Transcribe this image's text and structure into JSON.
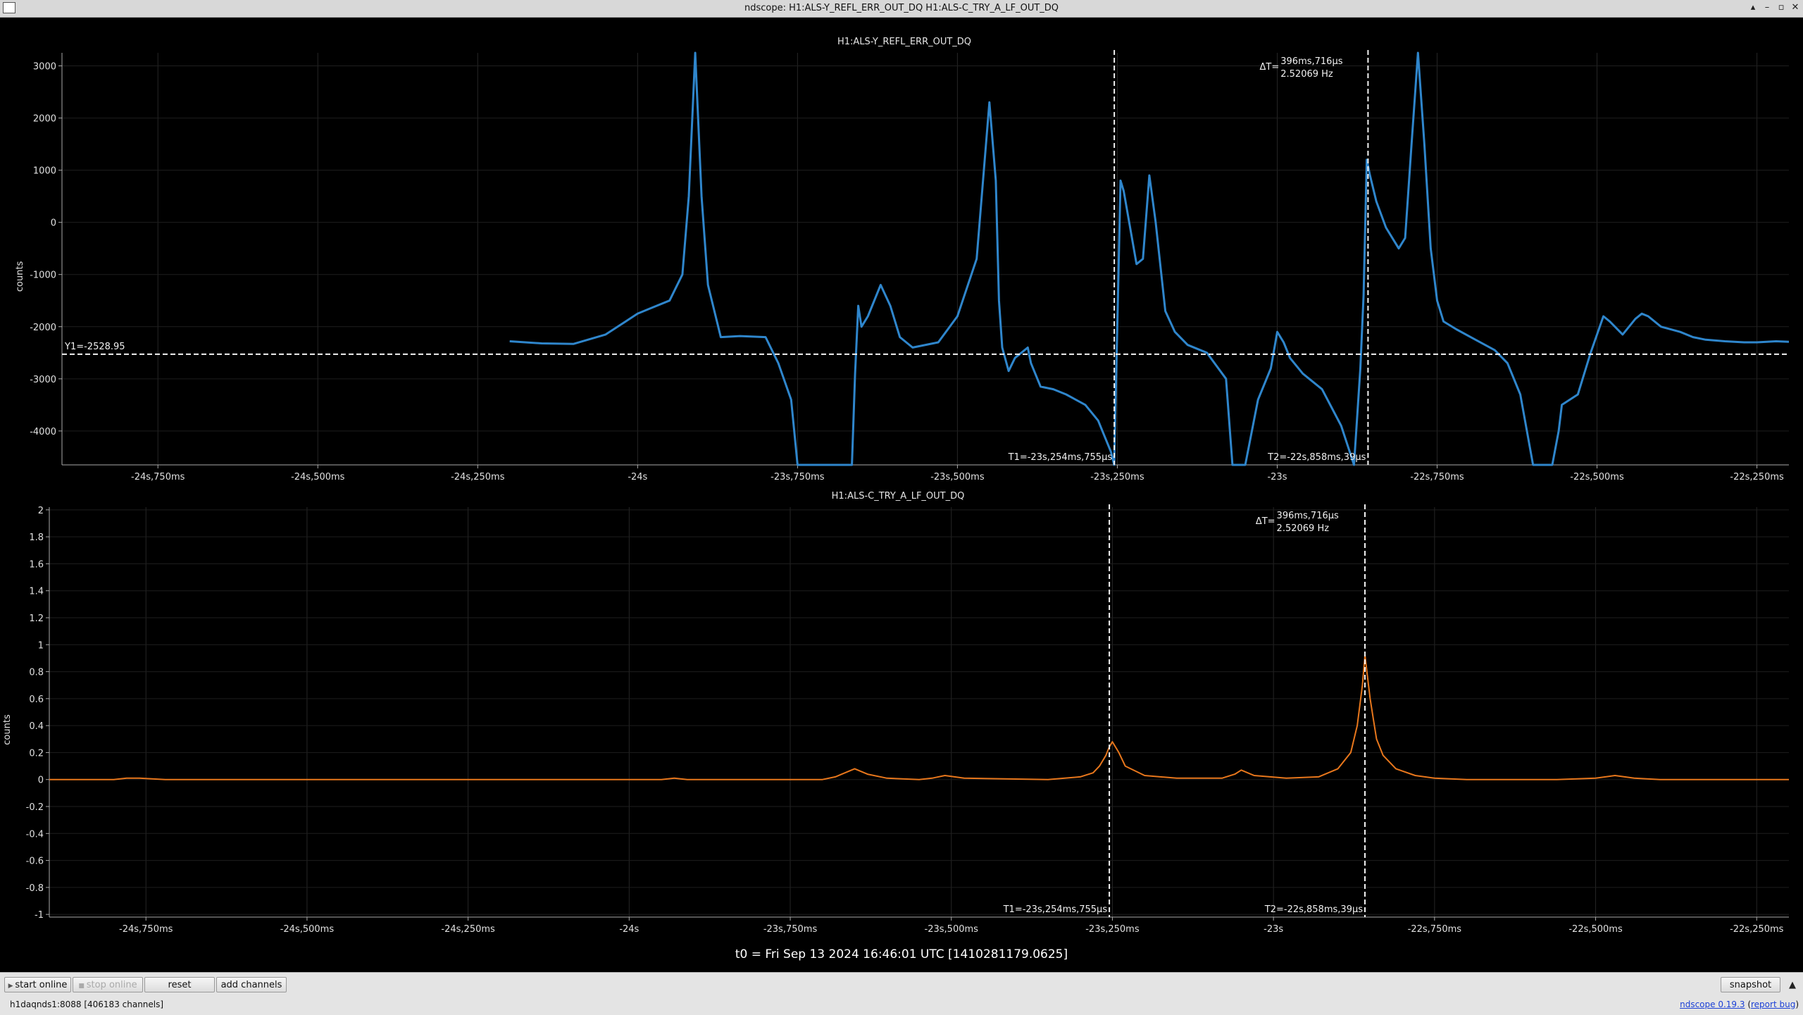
{
  "window": {
    "title": "ndscope: H1:ALS-Y_REFL_ERR_OUT_DQ H1:ALS-C_TRY_A_LF_OUT_DQ"
  },
  "t0_label": "t0 = Fri Sep 13 2024 16:46:01 UTC [1410281179.0625]",
  "toolbar": {
    "start_online": "start online",
    "stop_online": "stop online",
    "reset": "reset",
    "add_channels": "add channels",
    "snapshot": "snapshot"
  },
  "status": {
    "server": "h1daqnds1:8088  [406183 channels]",
    "version_link": "ndscope 0.19.3",
    "report_bug": "report bug"
  },
  "chart_data": [
    {
      "type": "line",
      "title": "H1:ALS-Y_REFL_ERR_OUT_DQ",
      "ylabel": "counts",
      "xlim": [
        -24.9,
        -22.2
      ],
      "ylim": [
        -4650,
        3250
      ],
      "yticks": [
        3000,
        2000,
        1000,
        0,
        -1000,
        -2000,
        -3000,
        -4000
      ],
      "ytick_labels": [
        "3000",
        "2000",
        "1000",
        "0",
        "-1000",
        "-2000",
        "-3000",
        "-4000"
      ],
      "xticks": [
        -24.75,
        -24.5,
        -24.25,
        -24,
        -23.75,
        -23.5,
        -23.25,
        -23,
        -22.75,
        -22.5,
        -22.25
      ],
      "xtick_labels": [
        "-24s,750ms",
        "-24s,500ms",
        "-24s,250ms",
        "-24s",
        "-23s,750ms",
        "-23s,500ms",
        "-23s,250ms",
        "-23s",
        "-22s,750ms",
        "-22s,500ms",
        "-22s,250ms"
      ],
      "grid": true,
      "color": "#2f86cc",
      "series": [
        {
          "x": [
            -24.2,
            -24.15,
            -24.1,
            -24.05,
            -24.0,
            -23.98,
            -23.95,
            -23.93,
            -23.92,
            -23.91,
            -23.9,
            -23.89,
            -23.87,
            -23.84,
            -23.8,
            -23.78,
            -23.76,
            -23.75,
            -23.745,
            -23.74,
            -23.71,
            -23.7,
            -23.665,
            -23.66,
            -23.655,
            -23.65,
            -23.64,
            -23.62,
            -23.605,
            -23.59,
            -23.57,
            -23.53,
            -23.5,
            -23.47,
            -23.45,
            -23.44,
            -23.435,
            -23.43,
            -23.42,
            -23.41,
            -23.39,
            -23.385,
            -23.37,
            -23.35,
            -23.33,
            -23.3,
            -23.28,
            -23.27,
            -23.26,
            -23.255,
            -23.25,
            -23.245,
            -23.24,
            -23.22,
            -23.21,
            -23.2,
            -23.19,
            -23.175,
            -23.16,
            -23.14,
            -23.11,
            -23.08,
            -23.07,
            -23.05,
            -23.05,
            -23.03,
            -23.01,
            -23.0,
            -22.99,
            -22.98,
            -22.96,
            -22.93,
            -22.9,
            -22.88,
            -22.87,
            -22.865,
            -22.86,
            -22.855,
            -22.845,
            -22.83,
            -22.81,
            -22.8,
            -22.79,
            -22.78,
            -22.77,
            -22.76,
            -22.75,
            -22.74,
            -22.72,
            -22.69,
            -22.66,
            -22.64,
            -22.62,
            -22.6,
            -22.59,
            -22.58,
            -22.57,
            -22.56,
            -22.555,
            -22.53,
            -22.51,
            -22.49,
            -22.48,
            -22.46,
            -22.45,
            -22.44,
            -22.43,
            -22.42,
            -22.4,
            -22.37,
            -22.35,
            -22.33,
            -22.3,
            -22.27,
            -22.25,
            -22.22,
            -22.2
          ],
          "y": [
            -2280,
            -2320,
            -2330,
            -2150,
            -1750,
            -1650,
            -1500,
            -1000,
            500,
            3250,
            500,
            -1200,
            -2200,
            -2180,
            -2200,
            -2700,
            -3400,
            -4650,
            -4650,
            -4650,
            -4650,
            -4650,
            -4650,
            -2900,
            -1600,
            -2000,
            -1800,
            -1200,
            -1600,
            -2200,
            -2400,
            -2300,
            -1800,
            -700,
            2300,
            800,
            -1500,
            -2400,
            -2850,
            -2600,
            -2400,
            -2700,
            -3150,
            -3200,
            -3300,
            -3500,
            -3800,
            -4100,
            -4400,
            -4650,
            -2000,
            800,
            600,
            -800,
            -700,
            900,
            0,
            -1700,
            -2100,
            -2350,
            -2500,
            -3000,
            -4650,
            -4650,
            -4650,
            -3400,
            -2800,
            -2100,
            -2300,
            -2600,
            -2900,
            -3200,
            -3900,
            -4650,
            -2800,
            -1400,
            1200,
            900,
            400,
            -100,
            -500,
            -300,
            1500,
            3300,
            1500,
            -500,
            -1500,
            -1900,
            -2050,
            -2250,
            -2450,
            -2700,
            -3300,
            -4650,
            -4650,
            -4650,
            -4650,
            -4000,
            -3500,
            -3300,
            -2500,
            -1800,
            -1900,
            -2150,
            -2000,
            -1850,
            -1750,
            -1800,
            -2000,
            -2100,
            -2200,
            -2250,
            -2280,
            -2300,
            -2300,
            -2280,
            -2290
          ]
        }
      ],
      "cursors": {
        "y1_label": "Y1=-2528.95",
        "y1_value": -2528.95,
        "t1_label": "T1=-23s,254ms,755µs",
        "t1_value": -23.254755,
        "t2_label": "T2=-22s,858ms,39µs",
        "t2_value": -22.858039,
        "delta_label": "ΔT=",
        "delta_time": "396ms,716µs",
        "delta_freq": "2.52069 Hz"
      }
    },
    {
      "type": "line",
      "title": "H1:ALS-C_TRY_A_LF_OUT_DQ",
      "ylabel": "counts",
      "xlim": [
        -24.9,
        -22.2
      ],
      "ylim": [
        -1.02,
        2.02
      ],
      "yticks": [
        2,
        1.8,
        1.6,
        1.4,
        1.2,
        1,
        0.8,
        0.6,
        0.4,
        0.2,
        0,
        -0.2,
        -0.4,
        -0.6,
        -0.8,
        -1
      ],
      "ytick_labels": [
        "2",
        "1.8",
        "1.6",
        "1.4",
        "1.2",
        "1",
        "0.8",
        "0.6",
        "0.4",
        "0.2",
        "0",
        "-0.2",
        "-0.4",
        "-0.6",
        "-0.8",
        "-1"
      ],
      "xticks": [
        -24.75,
        -24.5,
        -24.25,
        -24,
        -23.75,
        -23.5,
        -23.25,
        -23,
        -22.75,
        -22.5,
        -22.25
      ],
      "xtick_labels": [
        "-24s,750ms",
        "-24s,500ms",
        "-24s,250ms",
        "-24s",
        "-23s,750ms",
        "-23s,500ms",
        "-23s,250ms",
        "-23s",
        "-22s,750ms",
        "-22s,500ms",
        "-22s,250ms"
      ],
      "grid": true,
      "color": "#e8771c",
      "series": [
        {
          "x": [
            -24.9,
            -24.8,
            -24.78,
            -24.76,
            -24.72,
            -24.4,
            -23.95,
            -23.93,
            -23.91,
            -23.7,
            -23.68,
            -23.67,
            -23.65,
            -23.63,
            -23.6,
            -23.55,
            -23.53,
            -23.51,
            -23.48,
            -23.35,
            -23.3,
            -23.28,
            -23.27,
            -23.26,
            -23.255,
            -23.25,
            -23.24,
            -23.23,
            -23.2,
            -23.15,
            -23.08,
            -23.06,
            -23.05,
            -23.03,
            -22.98,
            -22.93,
            -22.9,
            -22.88,
            -22.87,
            -22.862,
            -22.858,
            -22.855,
            -22.85,
            -22.845,
            -22.84,
            -22.83,
            -22.81,
            -22.78,
            -22.75,
            -22.7,
            -22.56,
            -22.5,
            -22.47,
            -22.44,
            -22.4,
            -22.3,
            -22.2
          ],
          "y": [
            0,
            0,
            0.01,
            0.01,
            0,
            0,
            0,
            0.01,
            0,
            0,
            0.02,
            0.04,
            0.08,
            0.04,
            0.01,
            0,
            0.01,
            0.03,
            0.01,
            0,
            0.02,
            0.05,
            0.1,
            0.18,
            0.24,
            0.28,
            0.2,
            0.1,
            0.03,
            0.01,
            0.01,
            0.04,
            0.07,
            0.03,
            0.01,
            0.02,
            0.08,
            0.2,
            0.4,
            0.7,
            0.92,
            0.8,
            0.6,
            0.45,
            0.3,
            0.18,
            0.08,
            0.03,
            0.01,
            0,
            0,
            0.01,
            0.03,
            0.01,
            0,
            0,
            0
          ]
        }
      ],
      "cursors": {
        "t1_label": "T1=-23s,254ms,755µs",
        "t1_value": -23.254755,
        "t2_label": "T2=-22s,858ms,39µs",
        "t2_value": -22.858039,
        "delta_label": "ΔT=",
        "delta_time": "396ms,716µs",
        "delta_freq": "2.52069 Hz"
      }
    }
  ]
}
